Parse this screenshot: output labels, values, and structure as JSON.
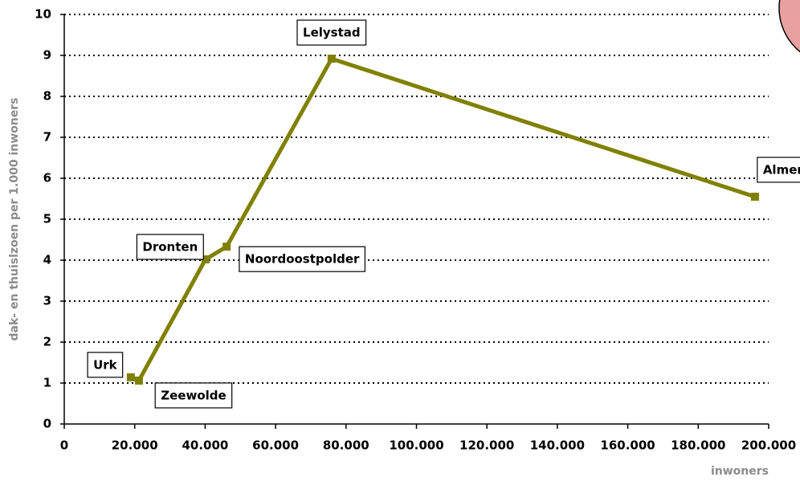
{
  "chart_data": {
    "type": "line",
    "x_label": "inwoners",
    "y_label": "dak- en thuislzoen per 1.000 inwoners",
    "labels": [
      "Urk",
      "Zeewolde",
      "Dronten",
      "Noordoostpolder",
      "Lelystad",
      "Almere"
    ],
    "x": [
      18900,
      21200,
      40100,
      46100,
      75900,
      196100
    ],
    "series": [
      {
        "color": "#808000",
        "values": [
          1.14,
          1.06,
          4.02,
          4.33,
          8.92,
          5.55
        ]
      }
    ],
    "xlim": [
      0,
      200000
    ],
    "xticks": [
      0,
      {
        "value": 20000,
        "label": "20.000"
      },
      {
        "value": 40000,
        "label": "40.000"
      },
      {
        "value": 60000,
        "label": "60.000"
      },
      {
        "value": 80000,
        "label": "80.000"
      },
      {
        "value": 100000,
        "label": "100.000"
      },
      {
        "value": 120000,
        "label": "120.000"
      },
      {
        "value": 140000,
        "label": "140.000"
      },
      {
        "value": 160000,
        "label": "160.000"
      },
      {
        "value": 180000,
        "label": "180.000"
      },
      {
        "value": 200000,
        "label": "200.000"
      }
    ],
    "ylim": [
      0,
      10
    ],
    "yticks": [
      0,
      1,
      2,
      3,
      4,
      5,
      6,
      7,
      8,
      9,
      10
    ],
    "grid": true
  }
}
